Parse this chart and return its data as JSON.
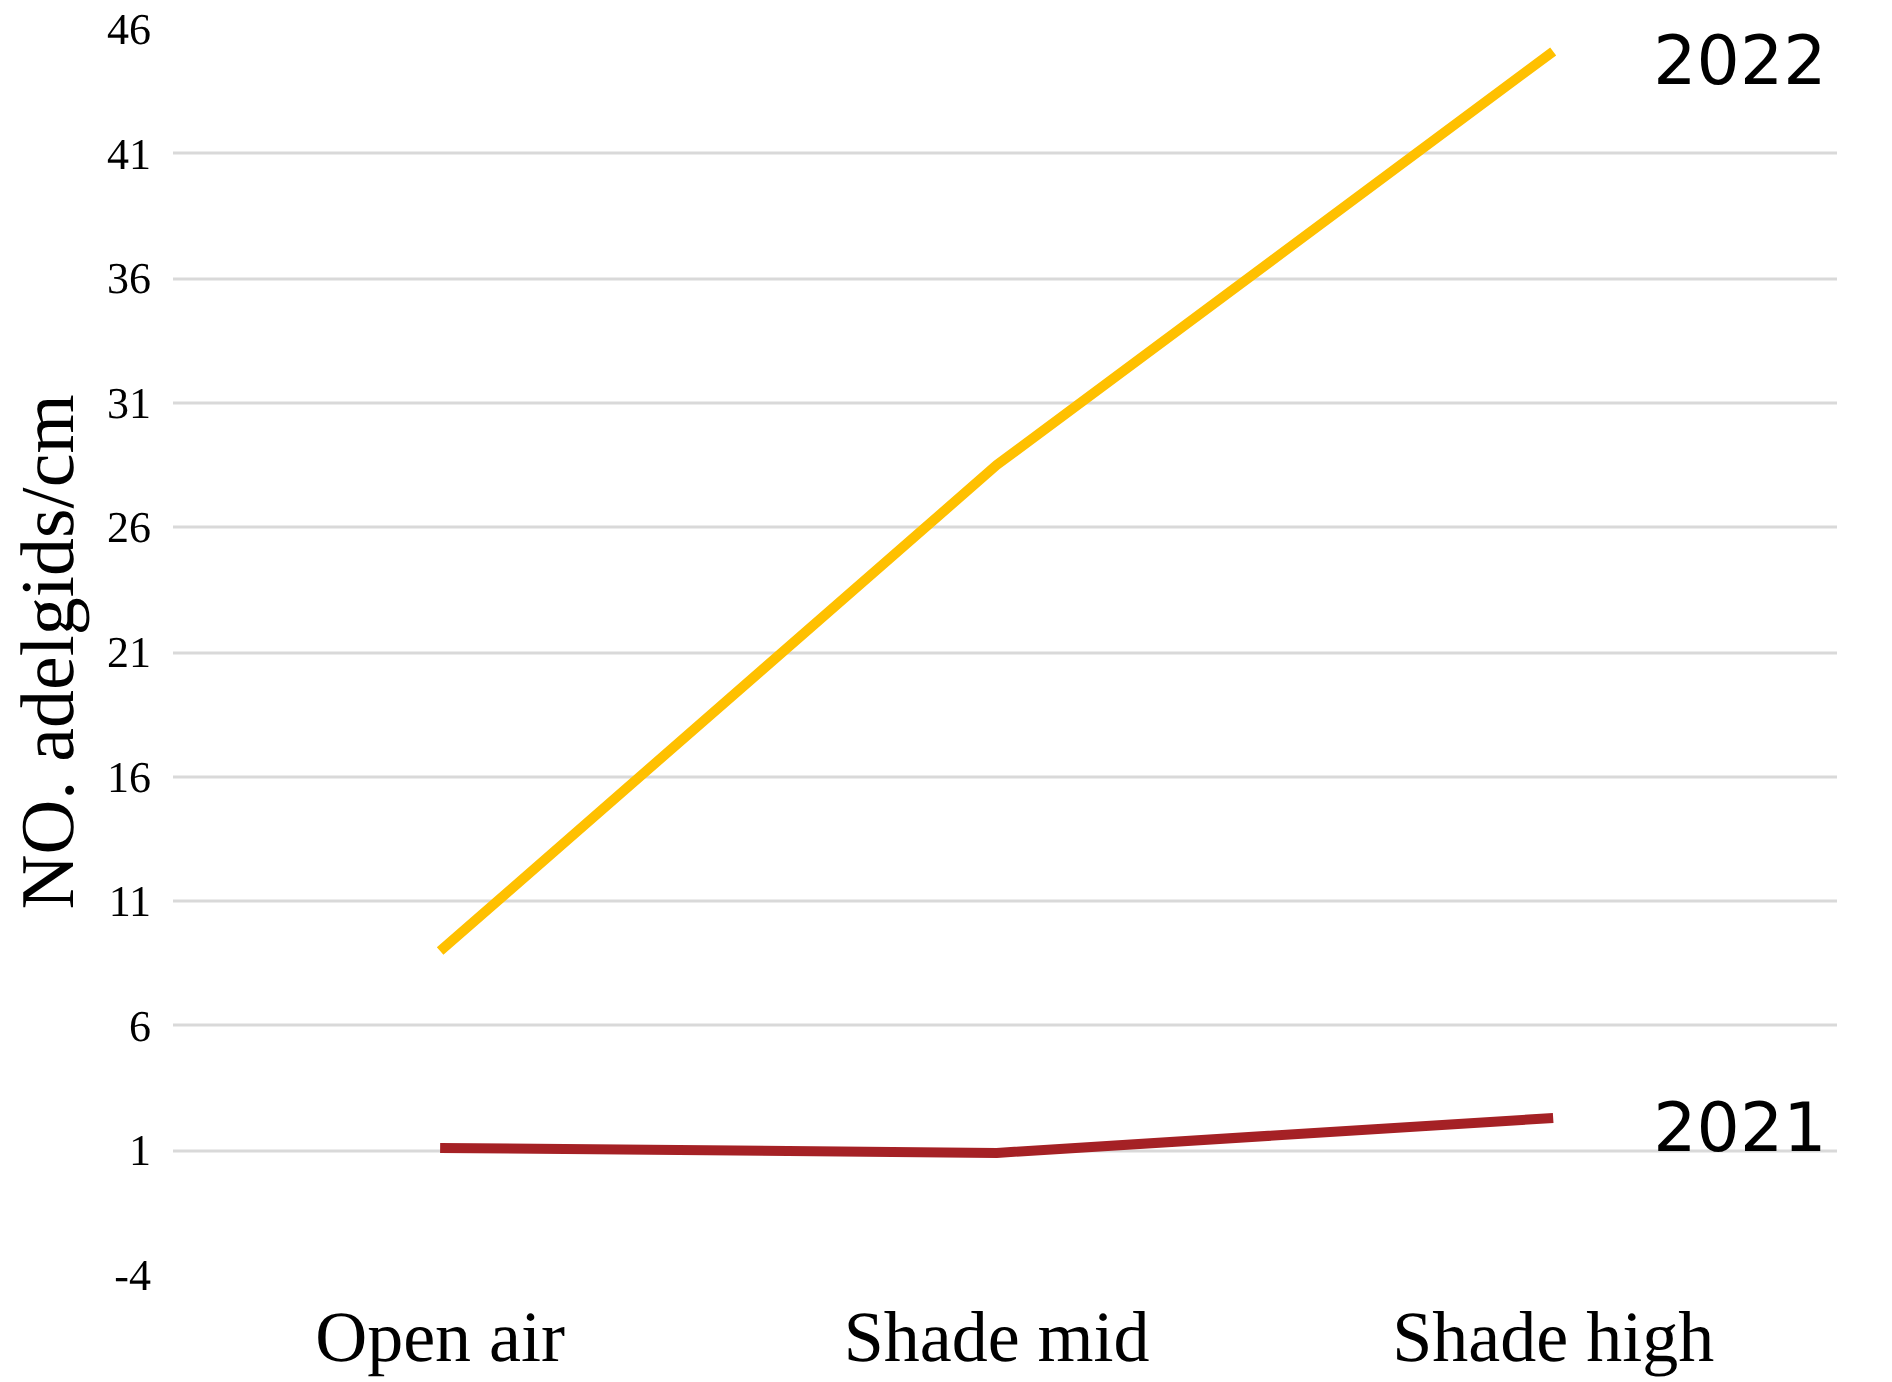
{
  "chart_data": {
    "type": "line",
    "ylabel": "NO. adelgids/cm",
    "categories": [
      "Open air",
      "Shade mid",
      "Shade high"
    ],
    "series": [
      {
        "name": "2022",
        "color": "#ffc000",
        "values": [
          9.0,
          28.5,
          45.1
        ]
      },
      {
        "name": "2021",
        "color": "#a52125",
        "values": [
          1.1,
          0.9,
          2.3
        ]
      }
    ],
    "ylim": [
      -4,
      46
    ],
    "yticks": [
      -4,
      1,
      6,
      11,
      16,
      21,
      26,
      31,
      36,
      41,
      46
    ],
    "grid": "y",
    "legend": false,
    "marker": "none",
    "line_style": "solid"
  }
}
